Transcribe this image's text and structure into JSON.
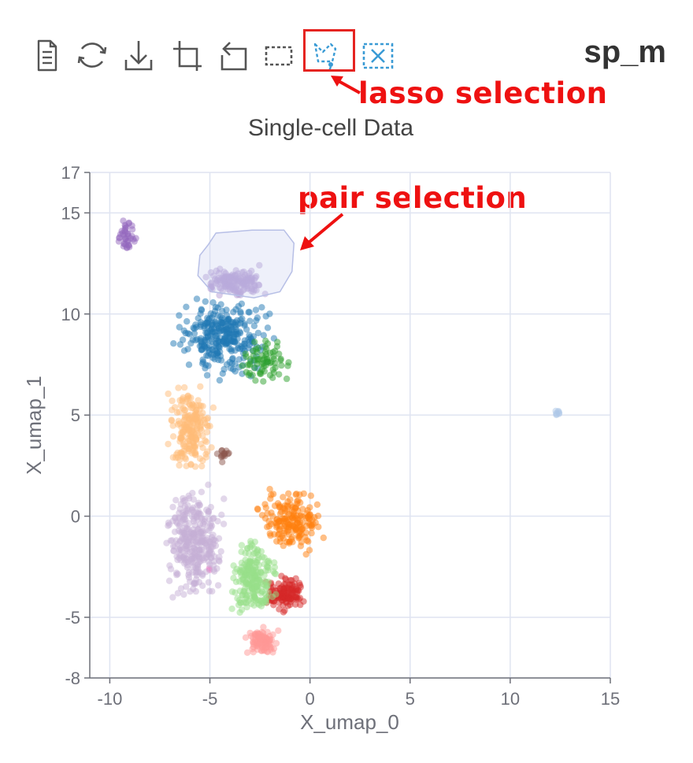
{
  "header": {
    "sheet_title": "sp_m"
  },
  "toolbar": {
    "tools": [
      {
        "icon": "data-view-icon",
        "active": false
      },
      {
        "icon": "refresh-icon",
        "active": false
      },
      {
        "icon": "download-icon",
        "active": false
      },
      {
        "icon": "crop-icon",
        "active": false
      },
      {
        "icon": "undo-icon",
        "active": false
      },
      {
        "icon": "rect-select-icon",
        "active": false
      },
      {
        "icon": "lasso-select-icon",
        "active": true
      },
      {
        "icon": "clear-selection-icon",
        "active": false
      }
    ],
    "active_color": "#3a9bd5",
    "icon_color": "#555555",
    "highlight_color": "#e52421"
  },
  "annotations": {
    "lasso_label": "lasso selection",
    "pair_label": "pair selection",
    "color": "#ee1111"
  },
  "chart_data": {
    "type": "scatter",
    "title": "Single-cell Data",
    "xlabel": "X_umap_0",
    "ylabel": "X_umap_1",
    "xlim": [
      -11,
      15
    ],
    "ylim": [
      -8,
      17
    ],
    "xticks": [
      -10,
      -5,
      0,
      5,
      10,
      15
    ],
    "xtick_labels": [
      "-10",
      "-5",
      "0",
      "5",
      "10",
      "15"
    ],
    "yticks": [
      -8,
      -5,
      0,
      5,
      10,
      15,
      17
    ],
    "ytick_labels": [
      "-8",
      "-5",
      "0",
      "5",
      "10",
      "15",
      "17"
    ],
    "grid": true,
    "legend": "none",
    "selection_region": {
      "color": "#c8cdf0",
      "points": [
        [
          -5.1,
          13.4
        ],
        [
          -4.7,
          14.0
        ],
        [
          -2.9,
          14.15
        ],
        [
          -1.3,
          14.15
        ],
        [
          -0.8,
          13.5
        ],
        [
          -0.9,
          12.1
        ],
        [
          -1.5,
          11.1
        ],
        [
          -2.8,
          10.8
        ],
        [
          -4.9,
          11.1
        ],
        [
          -5.6,
          11.9
        ],
        [
          -5.5,
          12.9
        ]
      ]
    },
    "clusters": [
      {
        "color": "#1f77b4",
        "x": [
          -7.2,
          -1.5
        ],
        "y": [
          6.6,
          11.2
        ],
        "n": 300
      },
      {
        "color": "#ff7f0e",
        "x": [
          -3.0,
          1.0
        ],
        "y": [
          -2.2,
          1.6
        ],
        "n": 180
      },
      {
        "color": "#2ca02c",
        "x": [
          -4.0,
          -0.4
        ],
        "y": [
          6.1,
          9.1
        ],
        "n": 70
      },
      {
        "color": "#d62728",
        "x": [
          -2.4,
          -0.1
        ],
        "y": [
          -4.9,
          -2.8
        ],
        "n": 130
      },
      {
        "color": "#9467bd",
        "x": [
          -9.7,
          -8.6
        ],
        "y": [
          12.9,
          15.0
        ],
        "n": 40
      },
      {
        "color": "#8c564b",
        "x": [
          -4.8,
          -3.8
        ],
        "y": [
          2.6,
          3.6
        ],
        "n": 14
      },
      {
        "color": "#e377c2",
        "x": [
          -5.3,
          -4.8
        ],
        "y": [
          -2.8,
          -2.4
        ],
        "n": 2
      },
      {
        "color": "#ffbb78",
        "x": [
          -7.3,
          -4.6
        ],
        "y": [
          1.5,
          7.1
        ],
        "n": 200
      },
      {
        "color": "#aec7e8",
        "x": [
          12.0,
          12.7
        ],
        "y": [
          4.8,
          5.4
        ],
        "n": 8
      },
      {
        "color": "#98df8a",
        "x": [
          -4.2,
          -1.5
        ],
        "y": [
          -5.2,
          -0.8
        ],
        "n": 220
      },
      {
        "color": "#ff9896",
        "x": [
          -3.4,
          -1.3
        ],
        "y": [
          -7.2,
          -5.3
        ],
        "n": 90
      },
      {
        "color": "#c5b0d5",
        "x": [
          -7.5,
          -4.0
        ],
        "y": [
          -4.7,
          2.0
        ],
        "n": 320
      },
      {
        "color": "#b39bd3",
        "x": [
          -5.7,
          -1.8
        ],
        "y": [
          10.6,
          12.6
        ],
        "n": 150
      }
    ]
  }
}
